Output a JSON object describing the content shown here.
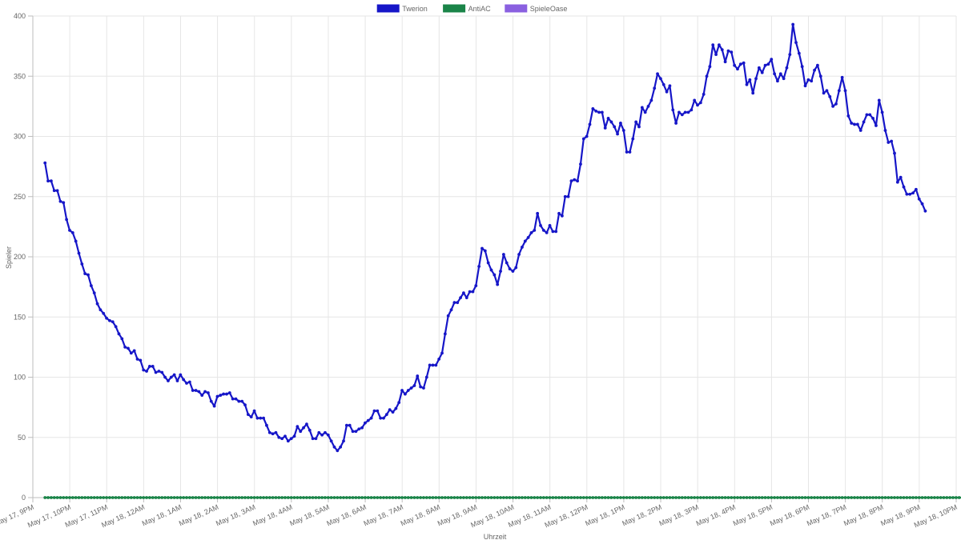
{
  "chart_data": {
    "type": "line",
    "xlabel": "Uhrzeit",
    "ylabel": "Spieler",
    "ylim": [
      0,
      400
    ],
    "yticks": [
      0,
      50,
      100,
      150,
      200,
      250,
      300,
      350,
      400
    ],
    "xlim_hours": [
      -3,
      22
    ],
    "x_tick_labels": [
      "May 17, 9PM",
      "May 17, 10PM",
      "May 17, 11PM",
      "May 18, 12AM",
      "May 18, 1AM",
      "May 18, 2AM",
      "May 18, 3AM",
      "May 18, 4AM",
      "May 18, 5AM",
      "May 18, 6AM",
      "May 18, 7AM",
      "May 18, 8AM",
      "May 18, 9AM",
      "May 18, 10AM",
      "May 18, 11AM",
      "May 18, 12PM",
      "May 18, 1PM",
      "May 18, 2PM",
      "May 18, 3PM",
      "May 18, 4PM",
      "May 18, 5PM",
      "May 18, 6PM",
      "May 18, 7PM",
      "May 18, 8PM",
      "May 18, 9PM",
      "May 18, 10PM"
    ],
    "grid": true,
    "legend_position": "top",
    "series": [
      {
        "name": "Twerion",
        "color": "#1616c8",
        "start_hour": -2.67,
        "step_minutes": 5,
        "values": [
          278,
          263,
          263,
          255,
          255,
          246,
          245,
          231,
          222,
          220,
          213,
          203,
          194,
          186,
          185,
          176,
          170,
          161,
          156,
          153,
          149,
          147,
          146,
          142,
          136,
          132,
          125,
          124,
          120,
          122,
          115,
          114,
          106,
          105,
          109,
          109,
          104,
          105,
          104,
          100,
          97,
          100,
          102,
          97,
          102,
          98,
          95,
          96,
          89,
          89,
          88,
          85,
          88,
          87,
          80,
          76,
          84,
          85,
          86,
          86,
          87,
          82,
          82,
          80,
          80,
          77,
          69,
          67,
          72,
          66,
          66,
          66,
          60,
          54,
          53,
          54,
          50,
          49,
          51,
          47,
          49,
          51,
          59,
          55,
          58,
          61,
          56,
          49,
          49,
          54,
          52,
          54,
          52,
          47,
          42,
          39,
          42,
          47,
          60,
          60,
          55,
          55,
          57,
          58,
          62,
          64,
          66,
          72,
          72,
          66,
          66,
          69,
          73,
          71,
          74,
          79,
          89,
          86,
          89,
          91,
          93,
          101,
          92,
          91,
          100,
          110,
          110,
          110,
          115,
          120,
          136,
          151,
          156,
          162,
          162,
          166,
          170,
          166,
          171,
          171,
          176,
          192,
          207,
          205,
          195,
          189,
          185,
          177,
          188,
          202,
          195,
          190,
          188,
          191,
          202,
          208,
          213,
          216,
          220,
          222,
          236,
          226,
          222,
          220,
          226,
          221,
          221,
          236,
          234,
          250,
          250,
          263,
          264,
          263,
          277,
          298,
          300,
          310,
          323,
          321,
          320,
          320,
          307,
          315,
          312,
          308,
          302,
          311,
          305,
          287,
          287,
          298,
          312,
          308,
          324,
          320,
          325,
          330,
          340,
          352,
          348,
          343,
          337,
          342,
          322,
          311,
          320,
          318,
          320,
          320,
          322,
          330,
          326,
          328,
          335,
          350,
          358,
          376,
          368,
          376,
          372,
          362,
          371,
          370,
          359,
          356,
          360,
          361,
          343,
          347,
          336,
          348,
          357,
          353,
          359,
          360,
          364,
          352,
          346,
          352,
          348,
          357,
          368,
          393,
          378,
          369,
          358,
          342,
          347,
          346,
          355,
          359,
          350,
          336,
          338,
          333,
          325,
          327,
          338,
          349,
          338,
          317,
          311,
          310,
          310,
          305,
          312,
          318,
          318,
          315,
          309,
          330,
          320,
          305,
          295,
          296,
          286,
          262,
          266,
          258,
          252,
          252,
          253,
          256,
          248,
          244,
          238
        ]
      },
      {
        "name": "AntiAC",
        "color": "#1a8448",
        "start_hour": -2.67,
        "step_minutes": 5,
        "values": [
          0,
          0,
          0,
          0,
          0,
          0,
          0,
          0,
          0,
          0,
          0,
          0,
          0,
          0,
          0,
          0,
          0,
          0,
          0,
          0,
          0,
          0,
          0,
          0,
          0,
          0,
          0,
          0,
          0,
          0,
          0,
          0,
          0,
          0,
          0,
          0,
          0,
          0,
          0,
          0,
          0,
          0,
          0,
          0,
          0,
          0,
          0,
          0,
          0,
          0,
          0,
          0,
          0,
          0,
          0,
          0,
          0,
          0,
          0,
          0,
          0,
          0,
          0,
          0,
          0,
          0,
          0,
          0,
          0,
          0,
          0,
          0,
          0,
          0,
          0,
          0,
          0,
          0,
          0,
          0,
          0,
          0,
          0,
          0,
          0,
          0,
          0,
          0,
          0,
          0,
          0,
          0,
          0,
          0,
          0,
          0,
          0,
          0,
          0,
          0,
          0,
          0,
          0,
          0,
          0,
          0,
          0,
          0,
          0,
          0,
          0,
          0,
          0,
          0,
          0,
          0,
          0,
          0,
          0,
          0,
          0,
          0,
          0,
          0,
          0,
          0,
          0,
          0,
          0,
          0,
          0,
          0,
          0,
          0,
          0,
          0,
          0,
          0,
          0,
          0,
          0,
          0,
          0,
          0,
          0,
          0,
          0,
          0,
          0,
          0,
          0,
          0,
          0,
          0,
          0,
          0,
          0,
          0,
          0,
          0,
          0,
          0,
          0,
          0,
          0,
          0,
          0,
          0,
          0,
          0,
          0,
          0,
          0,
          0,
          0,
          0,
          0,
          0,
          0,
          0,
          0,
          0,
          0,
          0,
          0,
          0,
          0,
          0,
          0,
          0,
          0,
          0,
          0,
          0,
          0,
          0,
          0,
          0,
          0,
          0,
          0,
          0,
          0,
          0,
          0,
          0,
          0,
          0,
          0,
          0,
          0,
          0,
          0,
          0,
          0,
          0,
          0,
          0,
          0,
          0,
          0,
          0,
          0,
          0,
          0,
          0,
          0,
          0,
          0,
          0,
          0,
          0,
          0,
          0,
          0,
          0,
          0,
          0,
          0,
          0,
          0,
          0,
          0,
          0,
          0,
          0,
          0,
          0,
          0,
          0,
          0,
          0,
          0,
          0,
          0,
          0,
          0,
          0,
          0,
          0,
          0,
          0,
          0,
          0,
          0,
          0,
          0,
          0,
          0,
          0,
          0,
          0,
          0,
          0,
          0,
          0,
          0,
          0,
          0,
          0,
          0,
          0,
          0,
          0,
          0,
          0,
          0,
          0,
          0,
          0,
          0,
          0,
          0,
          0,
          0,
          0,
          0,
          0,
          0,
          0
        ]
      },
      {
        "name": "SpieleOase",
        "color": "#8a60e0",
        "values": []
      }
    ]
  }
}
